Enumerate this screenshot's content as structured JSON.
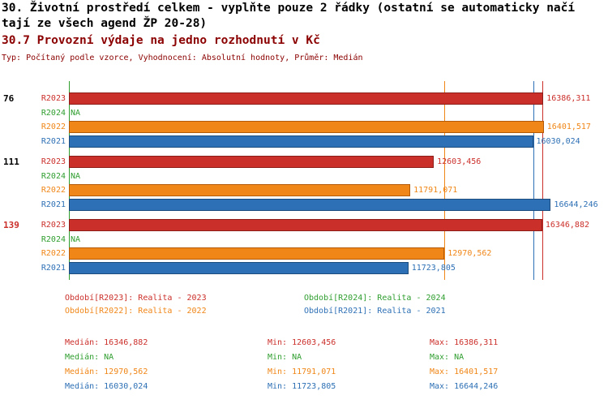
{
  "title": {
    "line1": "30. Životní prostředí celkem - vyplňte pouze 2 řádky (ostatní se automaticky načí",
    "line2": "tají ze všech agend ŽP 20-28)",
    "indicator": "30.7 Provozní výdaje na jedno rozhodnutí v Kč",
    "subtitle": "Typ: Počítaný podle vzorce, Vyhodnocení: Absolutní hodnoty, Průměr: Medián"
  },
  "colors": {
    "red": "#cb2f2a",
    "green": "#2f9e2f",
    "orange": "#f08617",
    "blue": "#2d70b5",
    "maroon": "#8b0000",
    "black": "#000000"
  },
  "chart_data": {
    "type": "bar",
    "orientation": "horizontal",
    "title": "30.7 Provozní výdaje na jedno rozhodnutí v Kč",
    "unit": "Kč",
    "axis_max": 16800,
    "grid": "off",
    "series_colors": {
      "R2023": "#cb2f2a",
      "R2024": "#2f9e2f",
      "R2022": "#f08617",
      "R2021": "#2d70b5"
    },
    "groups": [
      {
        "label": "76",
        "label_color": "#000000",
        "bars": [
          {
            "series": "R2023",
            "value": 16386.311,
            "display": "16386,311"
          },
          {
            "series": "R2024",
            "value": null,
            "display": "NA"
          },
          {
            "series": "R2022",
            "value": 16401.517,
            "display": "16401,517"
          },
          {
            "series": "R2021",
            "value": 16030.024,
            "display": "16030,024"
          }
        ]
      },
      {
        "label": "111",
        "label_color": "#000000",
        "bars": [
          {
            "series": "R2023",
            "value": 12603.456,
            "display": "12603,456"
          },
          {
            "series": "R2024",
            "value": null,
            "display": "NA"
          },
          {
            "series": "R2022",
            "value": 11791.071,
            "display": "11791,071"
          },
          {
            "series": "R2021",
            "value": 16644.246,
            "display": "16644,246"
          }
        ]
      },
      {
        "label": "139",
        "label_color": "#cb2f2a",
        "bars": [
          {
            "series": "R2023",
            "value": 16346.882,
            "display": "16346,882"
          },
          {
            "series": "R2024",
            "value": null,
            "display": "NA"
          },
          {
            "series": "R2022",
            "value": 12970.562,
            "display": "12970,562"
          },
          {
            "series": "R2021",
            "value": 11723.805,
            "display": "11723,805"
          }
        ]
      }
    ],
    "median_lines": [
      {
        "series": "R2024",
        "value": null
      },
      {
        "series": "R2022",
        "value": 12970.562
      },
      {
        "series": "R2021",
        "value": 16030.024
      },
      {
        "series": "R2023",
        "value": 16346.882
      }
    ]
  },
  "legend": {
    "items": [
      {
        "id": "R2023",
        "label": "Období[R2023]: Realita - 2023",
        "color": "#cb2f2a"
      },
      {
        "id": "R2024",
        "label": "Období[R2024]: Realita - 2024",
        "color": "#2f9e2f"
      },
      {
        "id": "R2022",
        "label": "Období[R2022]: Realita - 2022",
        "color": "#f08617"
      },
      {
        "id": "R2021",
        "label": "Období[R2021]: Realita - 2021",
        "color": "#2d70b5"
      }
    ]
  },
  "stats": {
    "rows": [
      {
        "id": "R2023",
        "median": "Medián: 16346,882",
        "min": "Min: 12603,456",
        "max": "Max: 16386,311",
        "color": "#cb2f2a"
      },
      {
        "id": "R2024",
        "median": "Medián: NA",
        "min": "Min: NA",
        "max": "Max: NA",
        "color": "#2f9e2f"
      },
      {
        "id": "R2022",
        "median": "Medián: 12970,562",
        "min": "Min: 11791,071",
        "max": "Max: 16401,517",
        "color": "#f08617"
      },
      {
        "id": "R2021",
        "median": "Medián: 16030,024",
        "min": "Min: 11723,805",
        "max": "Max: 16644,246",
        "color": "#2d70b5"
      }
    ]
  }
}
